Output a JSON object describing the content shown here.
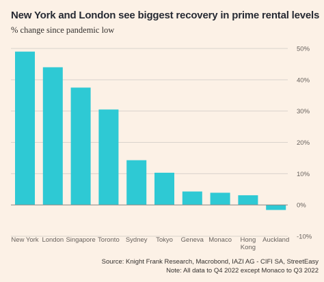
{
  "header": {
    "title": "New York and London see biggest recovery in prime rental levels",
    "subtitle": "% change since pandemic low"
  },
  "footer": {
    "source": "Source: Knight Frank Research, Macrobond, IAZI AG - CIFI SA, StreetEasy",
    "note": "Note: All data to Q4 2022 except Monaco to Q3 2022"
  },
  "colors": {
    "background": "#fcf1e6",
    "bar": "#2ec9d4",
    "gridline": "#d9d2cc",
    "baseline": "#8a8580"
  },
  "chart_data": {
    "type": "bar",
    "title": "New York and London see biggest recovery in prime rental levels",
    "subtitle": "% change since pandemic low",
    "xlabel": "",
    "ylabel": "",
    "categories": [
      "New York",
      "London",
      "Singapore",
      "Toronto",
      "Sydney",
      "Tokyo",
      "Geneva",
      "Monaco",
      "Hong Kong",
      "Auckland"
    ],
    "category_labels": [
      [
        "New York"
      ],
      [
        "London"
      ],
      [
        "Singapore"
      ],
      [
        "Toronto"
      ],
      [
        "Sydney"
      ],
      [
        "Tokyo"
      ],
      [
        "Geneva"
      ],
      [
        "Monaco"
      ],
      [
        "Hong",
        "Kong"
      ],
      [
        "Auckland"
      ]
    ],
    "values": [
      49,
      44,
      37.5,
      30.5,
      14.3,
      10.3,
      4.3,
      3.9,
      3.1,
      -1.6
    ],
    "ylim": [
      -10,
      50
    ],
    "yticks": [
      50,
      40,
      30,
      20,
      10,
      0,
      -10
    ],
    "ytick_labels": [
      "50%",
      "40%",
      "30%",
      "20%",
      "10%",
      "0%",
      "-10%"
    ],
    "y_axis_side": "right",
    "grid": true,
    "legend": "none"
  }
}
